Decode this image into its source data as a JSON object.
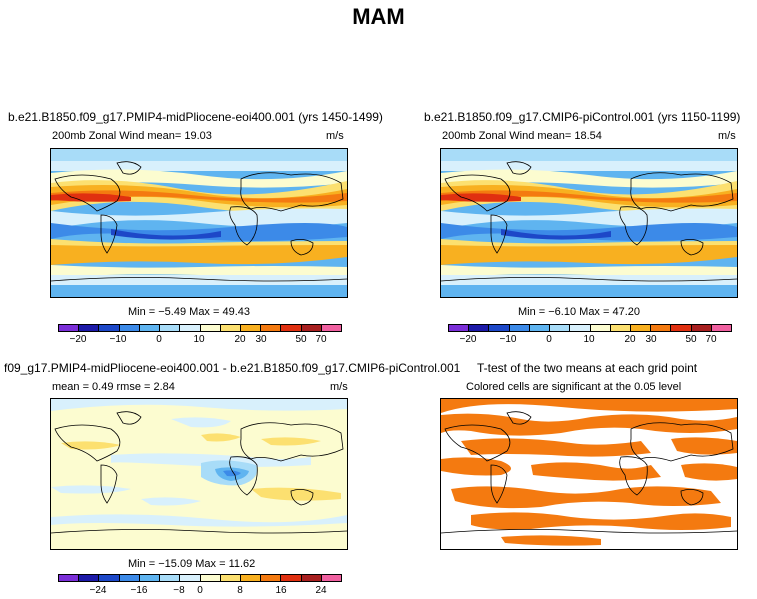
{
  "figure": {
    "title": "MAM"
  },
  "panels": [
    {
      "title": "b.e21.B1850.f09_g17.PMIP4-midPliocene-eoi400.001 (yrs 1450-1499)",
      "left_label": "200mb  Zonal Wind   mean=   19.03",
      "right_label": "m/s",
      "stats": "Min =  −5.49  Max =   49.43",
      "colorbar_ticks": [
        "−20",
        "−10",
        "0",
        "10",
        "20",
        "30",
        "50",
        "70"
      ]
    },
    {
      "title": "b.e21.B1850.f09_g17.CMIP6-piControl.001 (yrs 1150-1199)",
      "left_label": "200mb  Zonal Wind   mean=   18.54",
      "right_label": "m/s",
      "stats": "Min =  −6.10  Max =   47.20",
      "colorbar_ticks": [
        "−20",
        "−10",
        "0",
        "10",
        "20",
        "30",
        "50",
        "70"
      ]
    },
    {
      "title": "f09_g17.PMIP4-midPliocene-eoi400.001 - b.e21.B1850.f09_g17.CMIP6-piControl.001",
      "left_label": "mean =    0.49       rmse =    2.84",
      "right_label": "m/s",
      "stats": "Min =  −15.09  Max =   11.62",
      "colorbar_ticks": [
        "−24",
        "−16",
        "−8",
        "0",
        "8",
        "16",
        "24"
      ]
    },
    {
      "title": "T-test of the two means at each grid point",
      "subtitle": "Colored cells are significant at the 0.05 level"
    }
  ],
  "colors": {
    "wind_scale": [
      "#7b2fd8",
      "#1d1aa8",
      "#1d48c8",
      "#3c8ae8",
      "#5fb4f0",
      "#a8dcf8",
      "#d8f0fc",
      "#fcfcd0",
      "#fce070",
      "#f8b020",
      "#f47a10",
      "#e03010",
      "#a82020",
      "#f060a0"
    ],
    "diff_scale": [
      "#7b2fd8",
      "#1d1aa8",
      "#1d48c8",
      "#3c8ae8",
      "#5fb4f0",
      "#a8dcf8",
      "#d8f0fc",
      "#fcfcd0",
      "#fce070",
      "#f8b020",
      "#f47a10",
      "#e03010",
      "#a82020",
      "#f060a0"
    ],
    "significance": "#f47a10"
  }
}
